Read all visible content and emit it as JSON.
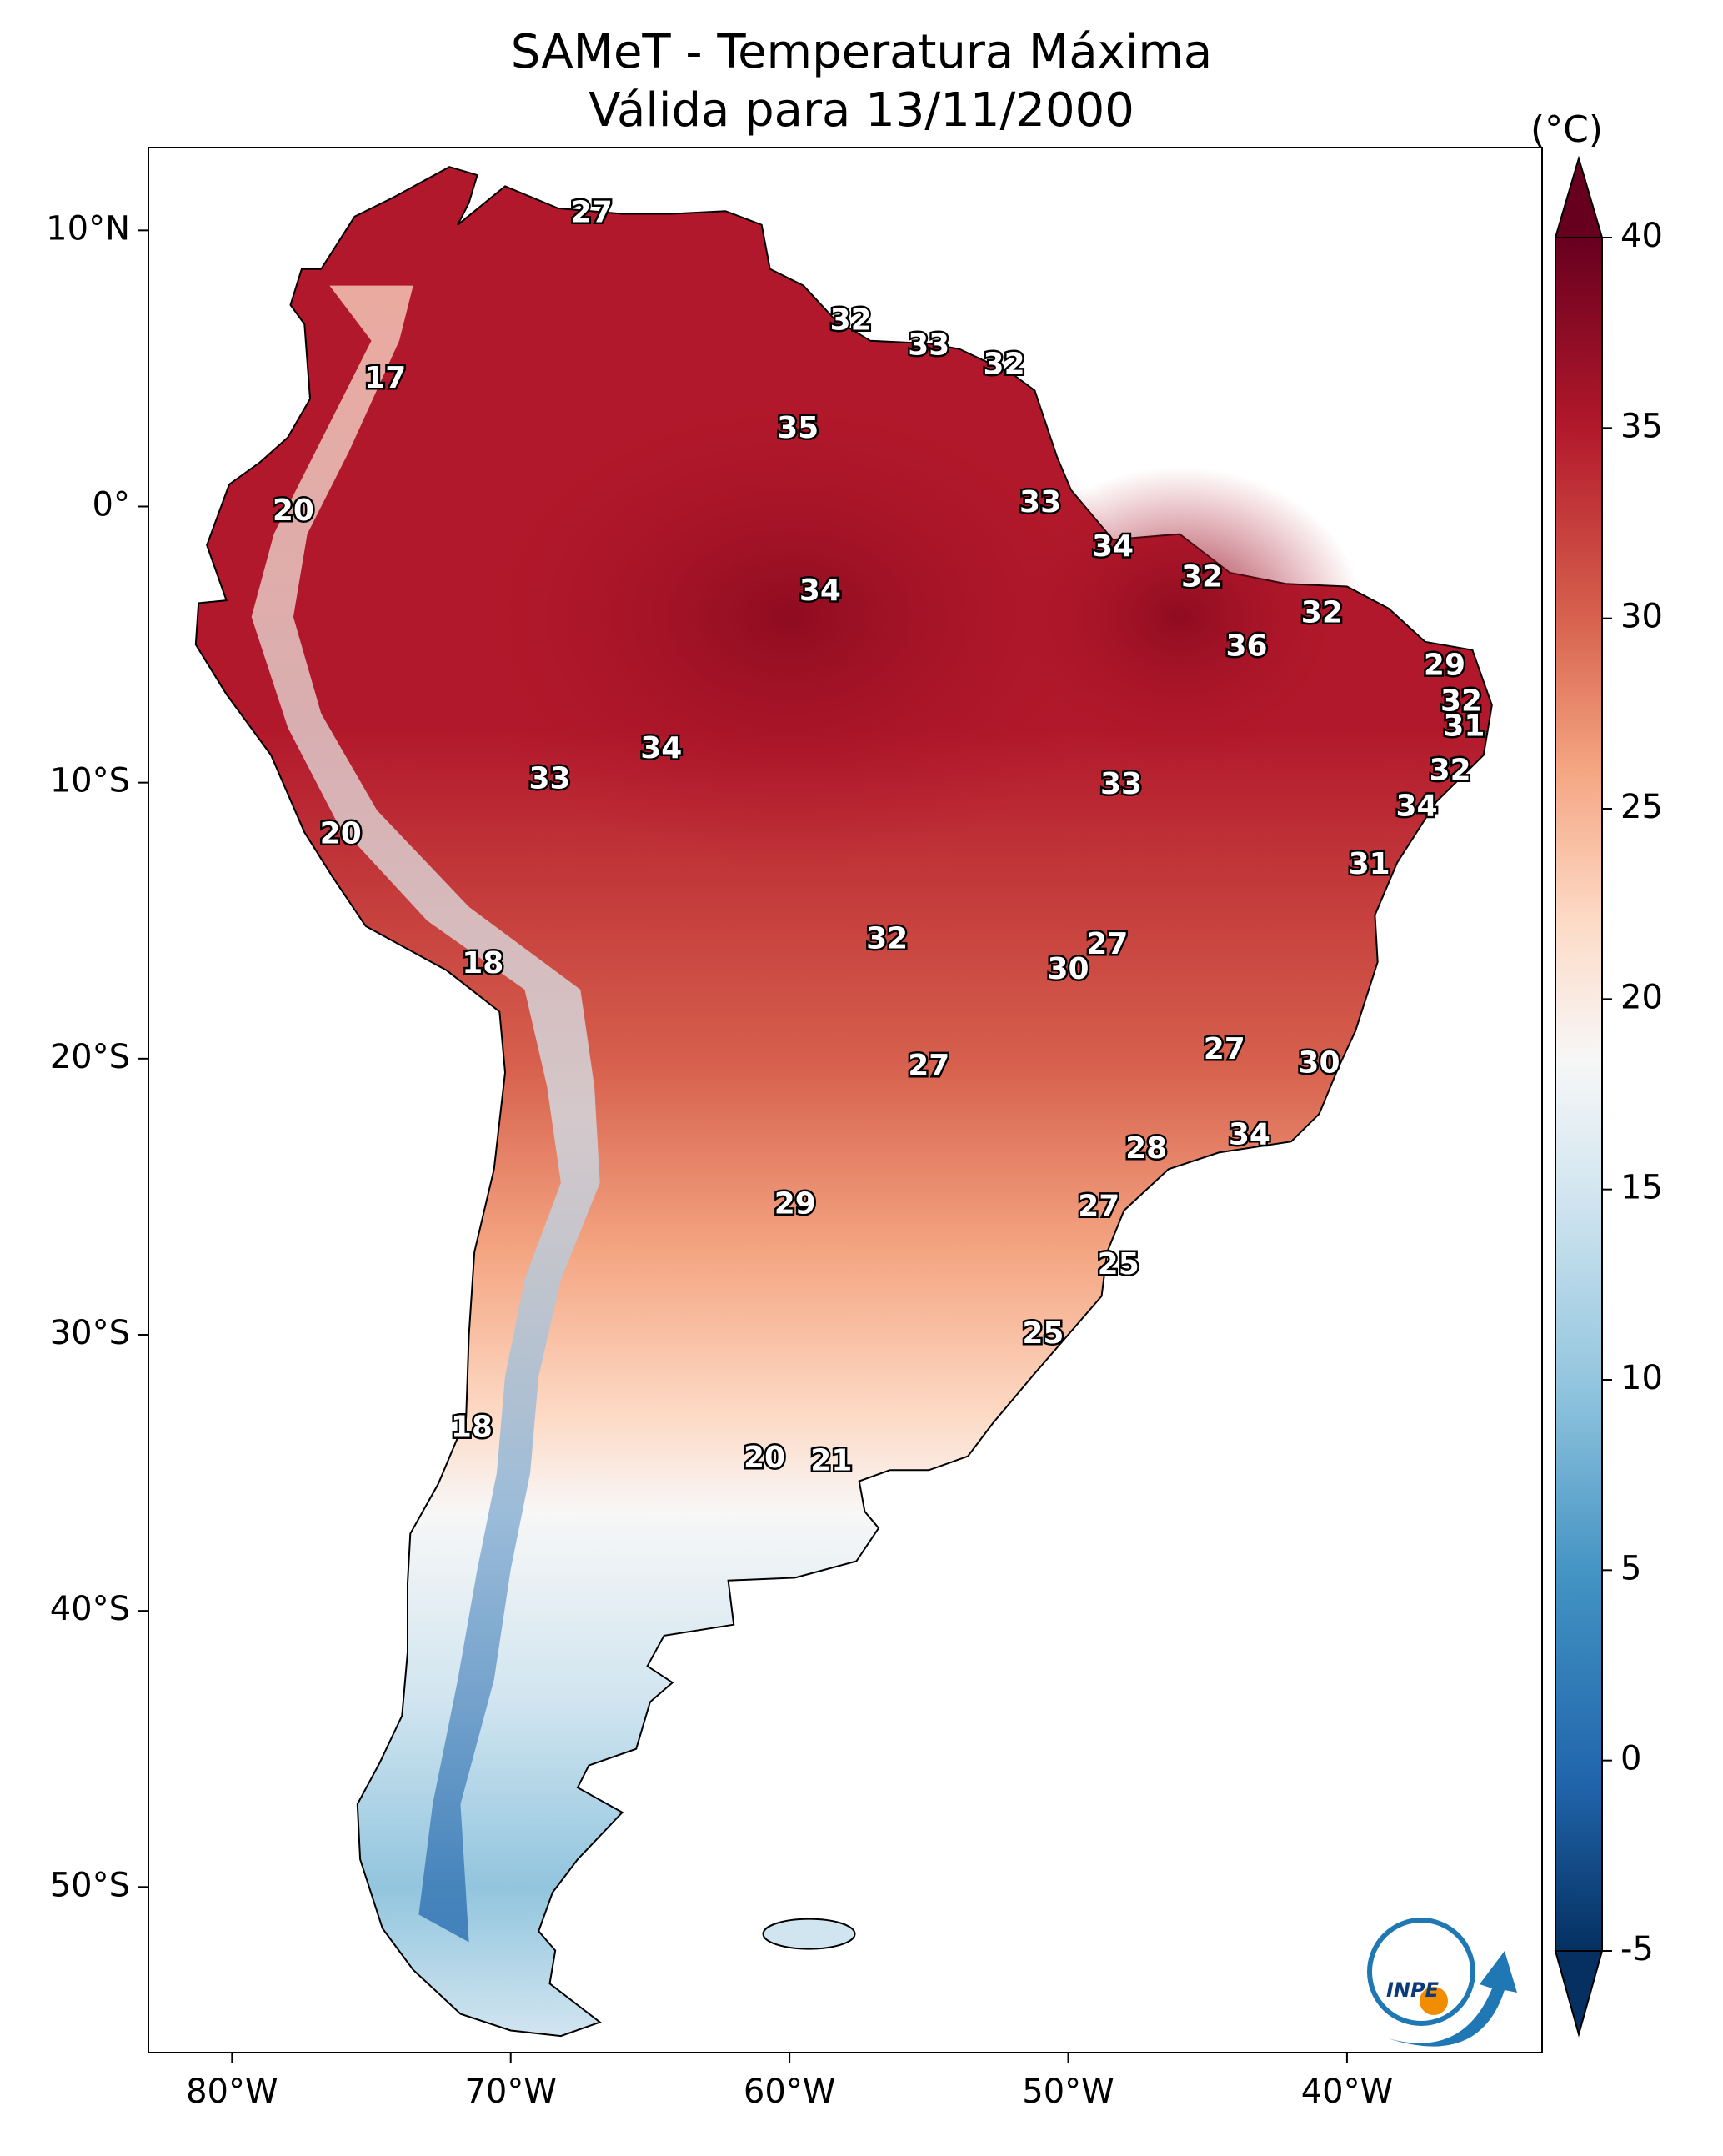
{
  "title": {
    "line1": "SAMeT - Temperatura Máxima",
    "line2": "Válida para 13/11/2000"
  },
  "map": {
    "lon_range": [
      -83,
      -33
    ],
    "lat_range": [
      -56,
      13
    ],
    "lon_ticks": [
      "80°W",
      "70°W",
      "60°W",
      "50°W",
      "40°W"
    ],
    "lat_ticks": [
      "10°N",
      "0°",
      "10°S",
      "20°S",
      "30°S",
      "40°S",
      "50°S"
    ],
    "contour_labels": [
      {
        "lon": -67.1,
        "lat": 10.6,
        "text": "27"
      },
      {
        "lon": -74.5,
        "lat": 4.6,
        "text": "17"
      },
      {
        "lon": -57.8,
        "lat": 6.7,
        "text": "32"
      },
      {
        "lon": -55.0,
        "lat": 5.8,
        "text": "33"
      },
      {
        "lon": -52.3,
        "lat": 5.1,
        "text": "32"
      },
      {
        "lon": -59.7,
        "lat": 2.8,
        "text": "35"
      },
      {
        "lon": -51.0,
        "lat": 0.1,
        "text": "33"
      },
      {
        "lon": -77.8,
        "lat": -0.2,
        "text": "20"
      },
      {
        "lon": -48.4,
        "lat": -1.5,
        "text": "34"
      },
      {
        "lon": -58.9,
        "lat": -3.1,
        "text": "34"
      },
      {
        "lon": -45.2,
        "lat": -2.6,
        "text": "32"
      },
      {
        "lon": -40.9,
        "lat": -3.9,
        "text": "32"
      },
      {
        "lon": -43.6,
        "lat": -5.1,
        "text": "36"
      },
      {
        "lon": -36.5,
        "lat": -5.8,
        "text": "29"
      },
      {
        "lon": -35.9,
        "lat": -7.1,
        "text": "32"
      },
      {
        "lon": -35.8,
        "lat": -8.0,
        "text": "31"
      },
      {
        "lon": -64.6,
        "lat": -8.8,
        "text": "34"
      },
      {
        "lon": -48.1,
        "lat": -10.1,
        "text": "33"
      },
      {
        "lon": -68.6,
        "lat": -9.9,
        "text": "33"
      },
      {
        "lon": -36.3,
        "lat": -9.6,
        "text": "32"
      },
      {
        "lon": -37.5,
        "lat": -10.9,
        "text": "34"
      },
      {
        "lon": -76.1,
        "lat": -11.9,
        "text": "20"
      },
      {
        "lon": -39.2,
        "lat": -13.0,
        "text": "31"
      },
      {
        "lon": -56.5,
        "lat": -15.7,
        "text": "32"
      },
      {
        "lon": -48.6,
        "lat": -15.9,
        "text": "27"
      },
      {
        "lon": -50.0,
        "lat": -16.8,
        "text": "30"
      },
      {
        "lon": -71.0,
        "lat": -16.6,
        "text": "18"
      },
      {
        "lon": -55.0,
        "lat": -20.3,
        "text": "27"
      },
      {
        "lon": -44.4,
        "lat": -19.7,
        "text": "27"
      },
      {
        "lon": -41.0,
        "lat": -20.2,
        "text": "30"
      },
      {
        "lon": -43.5,
        "lat": -22.8,
        "text": "34"
      },
      {
        "lon": -47.2,
        "lat": -23.3,
        "text": "28"
      },
      {
        "lon": -59.8,
        "lat": -25.3,
        "text": "29"
      },
      {
        "lon": -48.9,
        "lat": -25.4,
        "text": "27"
      },
      {
        "lon": -48.2,
        "lat": -27.5,
        "text": "25"
      },
      {
        "lon": -50.9,
        "lat": -30.0,
        "text": "25"
      },
      {
        "lon": -71.4,
        "lat": -33.4,
        "text": "18"
      },
      {
        "lon": -60.9,
        "lat": -34.5,
        "text": "20"
      },
      {
        "lon": -58.5,
        "lat": -34.6,
        "text": "21"
      }
    ]
  },
  "colorbar": {
    "unit": "(°C)",
    "min": -5,
    "max": 40,
    "tick_labels": [
      "40",
      "35",
      "30",
      "25",
      "20",
      "15",
      "10",
      "5",
      "0",
      "-5"
    ],
    "colors": [
      "#053061",
      "#2166ac",
      "#4393c3",
      "#92c5de",
      "#d1e5f0",
      "#f7f7f7",
      "#fddbc7",
      "#f4a582",
      "#d6604d",
      "#b2182b",
      "#67001f"
    ]
  },
  "logo": {
    "text": "INPE"
  }
}
